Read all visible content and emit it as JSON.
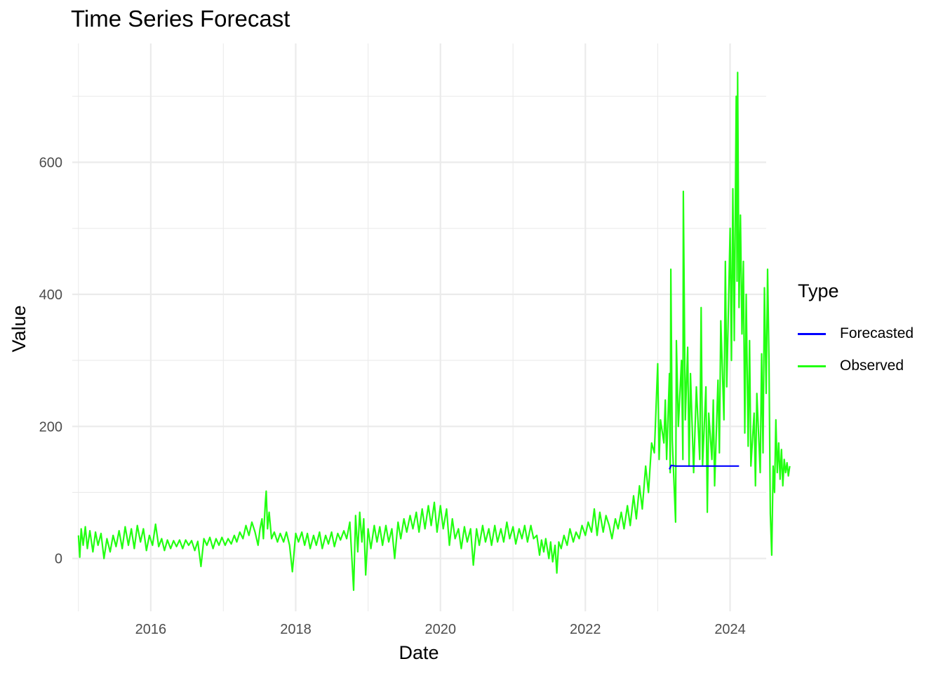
{
  "chart_data": {
    "type": "line",
    "title": "Time Series Forecast",
    "xlabel": "Date",
    "ylabel": "Value",
    "x_ticks": [
      "2016",
      "2018",
      "2020",
      "2022",
      "2024"
    ],
    "y_ticks": [
      "0",
      "200",
      "400",
      "600"
    ],
    "xlim": [
      "2014-12-01",
      "2024-07-01"
    ],
    "ylim": [
      -80,
      780
    ],
    "grid": true,
    "legend_title": "Type",
    "legend_position": "right",
    "series": [
      {
        "name": "Forecasted",
        "color": "#0000ff",
        "points": [
          [
            "2023-03-01",
            135
          ],
          [
            "2023-03-10",
            141
          ],
          [
            "2023-04-01",
            140
          ],
          [
            "2023-07-01",
            140
          ],
          [
            "2023-10-01",
            140
          ],
          [
            "2024-01-01",
            140
          ],
          [
            "2024-02-15",
            140
          ]
        ]
      },
      {
        "name": "Observed",
        "color": "#22ff11",
        "points": [
          [
            "2015-01-01",
            35
          ],
          [
            "2015-01-08",
            2
          ],
          [
            "2015-01-15",
            45
          ],
          [
            "2015-01-25",
            20
          ],
          [
            "2015-02-05",
            48
          ],
          [
            "2015-02-15",
            15
          ],
          [
            "2015-02-28",
            42
          ],
          [
            "2015-03-15",
            10
          ],
          [
            "2015-03-28",
            40
          ],
          [
            "2015-04-10",
            20
          ],
          [
            "2015-04-25",
            38
          ],
          [
            "2015-05-10",
            0
          ],
          [
            "2015-05-25",
            30
          ],
          [
            "2015-06-10",
            10
          ],
          [
            "2015-06-25",
            35
          ],
          [
            "2015-07-10",
            18
          ],
          [
            "2015-07-25",
            42
          ],
          [
            "2015-08-10",
            15
          ],
          [
            "2015-08-25",
            48
          ],
          [
            "2015-09-10",
            20
          ],
          [
            "2015-09-25",
            45
          ],
          [
            "2015-10-10",
            15
          ],
          [
            "2015-10-25",
            50
          ],
          [
            "2015-11-10",
            25
          ],
          [
            "2015-11-25",
            45
          ],
          [
            "2015-12-10",
            12
          ],
          [
            "2015-12-25",
            35
          ],
          [
            "2016-01-10",
            20
          ],
          [
            "2016-01-25",
            52
          ],
          [
            "2016-02-10",
            18
          ],
          [
            "2016-02-25",
            30
          ],
          [
            "2016-03-10",
            12
          ],
          [
            "2016-03-25",
            28
          ],
          [
            "2016-04-10",
            15
          ],
          [
            "2016-04-25",
            27
          ],
          [
            "2016-05-10",
            18
          ],
          [
            "2016-05-25",
            28
          ],
          [
            "2016-06-10",
            15
          ],
          [
            "2016-06-25",
            28
          ],
          [
            "2016-07-10",
            20
          ],
          [
            "2016-07-25",
            27
          ],
          [
            "2016-08-10",
            12
          ],
          [
            "2016-08-25",
            26
          ],
          [
            "2016-09-10",
            -12
          ],
          [
            "2016-09-25",
            30
          ],
          [
            "2016-10-10",
            20
          ],
          [
            "2016-10-25",
            32
          ],
          [
            "2016-11-10",
            15
          ],
          [
            "2016-11-25",
            30
          ],
          [
            "2016-12-10",
            20
          ],
          [
            "2016-12-25",
            32
          ],
          [
            "2017-01-10",
            20
          ],
          [
            "2017-01-25",
            30
          ],
          [
            "2017-02-10",
            22
          ],
          [
            "2017-02-25",
            35
          ],
          [
            "2017-03-10",
            25
          ],
          [
            "2017-03-25",
            40
          ],
          [
            "2017-04-10",
            30
          ],
          [
            "2017-04-25",
            50
          ],
          [
            "2017-05-10",
            35
          ],
          [
            "2017-05-25",
            55
          ],
          [
            "2017-06-10",
            40
          ],
          [
            "2017-06-25",
            20
          ],
          [
            "2017-07-05",
            45
          ],
          [
            "2017-07-15",
            60
          ],
          [
            "2017-07-22",
            30
          ],
          [
            "2017-08-01",
            85
          ],
          [
            "2017-08-05",
            102
          ],
          [
            "2017-08-12",
            45
          ],
          [
            "2017-08-20",
            70
          ],
          [
            "2017-09-01",
            30
          ],
          [
            "2017-09-15",
            40
          ],
          [
            "2017-10-01",
            25
          ],
          [
            "2017-10-15",
            38
          ],
          [
            "2017-11-01",
            25
          ],
          [
            "2017-11-15",
            40
          ],
          [
            "2017-12-01",
            20
          ],
          [
            "2017-12-15",
            -20
          ],
          [
            "2018-01-01",
            38
          ],
          [
            "2018-01-15",
            25
          ],
          [
            "2018-02-01",
            40
          ],
          [
            "2018-02-15",
            20
          ],
          [
            "2018-03-01",
            38
          ],
          [
            "2018-03-15",
            15
          ],
          [
            "2018-04-01",
            35
          ],
          [
            "2018-04-15",
            20
          ],
          [
            "2018-05-01",
            40
          ],
          [
            "2018-05-15",
            15
          ],
          [
            "2018-06-01",
            35
          ],
          [
            "2018-06-15",
            22
          ],
          [
            "2018-07-01",
            40
          ],
          [
            "2018-07-15",
            18
          ],
          [
            "2018-08-01",
            38
          ],
          [
            "2018-08-15",
            28
          ],
          [
            "2018-09-01",
            42
          ],
          [
            "2018-09-15",
            30
          ],
          [
            "2018-10-01",
            55
          ],
          [
            "2018-10-10",
            8
          ],
          [
            "2018-10-20",
            -48
          ],
          [
            "2018-10-30",
            65
          ],
          [
            "2018-11-10",
            10
          ],
          [
            "2018-11-20",
            70
          ],
          [
            "2018-12-01",
            25
          ],
          [
            "2018-12-10",
            60
          ],
          [
            "2018-12-20",
            -25
          ],
          [
            "2019-01-01",
            45
          ],
          [
            "2019-01-15",
            15
          ],
          [
            "2019-02-01",
            50
          ],
          [
            "2019-02-15",
            25
          ],
          [
            "2019-03-01",
            48
          ],
          [
            "2019-03-15",
            20
          ],
          [
            "2019-04-01",
            50
          ],
          [
            "2019-04-15",
            25
          ],
          [
            "2019-05-01",
            45
          ],
          [
            "2019-05-15",
            0
          ],
          [
            "2019-06-01",
            55
          ],
          [
            "2019-06-15",
            30
          ],
          [
            "2019-07-01",
            60
          ],
          [
            "2019-07-15",
            40
          ],
          [
            "2019-08-01",
            65
          ],
          [
            "2019-08-15",
            45
          ],
          [
            "2019-09-01",
            70
          ],
          [
            "2019-09-15",
            40
          ],
          [
            "2019-10-01",
            75
          ],
          [
            "2019-10-15",
            45
          ],
          [
            "2019-11-01",
            80
          ],
          [
            "2019-11-15",
            50
          ],
          [
            "2019-12-01",
            85
          ],
          [
            "2019-12-15",
            40
          ],
          [
            "2020-01-01",
            80
          ],
          [
            "2020-01-15",
            45
          ],
          [
            "2020-02-01",
            75
          ],
          [
            "2020-02-15",
            20
          ],
          [
            "2020-03-01",
            60
          ],
          [
            "2020-03-15",
            30
          ],
          [
            "2020-04-01",
            45
          ],
          [
            "2020-04-15",
            15
          ],
          [
            "2020-05-01",
            48
          ],
          [
            "2020-05-15",
            25
          ],
          [
            "2020-06-01",
            45
          ],
          [
            "2020-06-15",
            -10
          ],
          [
            "2020-07-01",
            45
          ],
          [
            "2020-07-15",
            20
          ],
          [
            "2020-08-01",
            50
          ],
          [
            "2020-08-15",
            25
          ],
          [
            "2020-09-01",
            45
          ],
          [
            "2020-09-15",
            20
          ],
          [
            "2020-10-01",
            50
          ],
          [
            "2020-10-15",
            25
          ],
          [
            "2020-11-01",
            45
          ],
          [
            "2020-11-15",
            25
          ],
          [
            "2020-12-01",
            55
          ],
          [
            "2020-12-15",
            30
          ],
          [
            "2021-01-01",
            48
          ],
          [
            "2021-01-15",
            22
          ],
          [
            "2021-02-01",
            45
          ],
          [
            "2021-02-15",
            30
          ],
          [
            "2021-03-01",
            50
          ],
          [
            "2021-03-15",
            25
          ],
          [
            "2021-04-01",
            50
          ],
          [
            "2021-04-15",
            30
          ],
          [
            "2021-05-01",
            35
          ],
          [
            "2021-05-15",
            5
          ],
          [
            "2021-05-25",
            28
          ],
          [
            "2021-06-05",
            10
          ],
          [
            "2021-06-15",
            30
          ],
          [
            "2021-07-01",
            0
          ],
          [
            "2021-07-10",
            25
          ],
          [
            "2021-07-20",
            -5
          ],
          [
            "2021-08-01",
            20
          ],
          [
            "2021-08-10",
            -22
          ],
          [
            "2021-08-20",
            25
          ],
          [
            "2021-09-01",
            15
          ],
          [
            "2021-09-15",
            35
          ],
          [
            "2021-10-01",
            20
          ],
          [
            "2021-10-15",
            45
          ],
          [
            "2021-11-01",
            25
          ],
          [
            "2021-11-15",
            40
          ],
          [
            "2021-12-01",
            30
          ],
          [
            "2021-12-15",
            50
          ],
          [
            "2022-01-01",
            35
          ],
          [
            "2022-01-15",
            55
          ],
          [
            "2022-02-01",
            40
          ],
          [
            "2022-02-15",
            75
          ],
          [
            "2022-03-01",
            35
          ],
          [
            "2022-03-15",
            70
          ],
          [
            "2022-04-01",
            40
          ],
          [
            "2022-04-15",
            65
          ],
          [
            "2022-05-01",
            50
          ],
          [
            "2022-05-15",
            30
          ],
          [
            "2022-06-01",
            60
          ],
          [
            "2022-06-15",
            45
          ],
          [
            "2022-07-01",
            70
          ],
          [
            "2022-07-15",
            45
          ],
          [
            "2022-08-01",
            80
          ],
          [
            "2022-08-15",
            50
          ],
          [
            "2022-09-01",
            95
          ],
          [
            "2022-09-15",
            60
          ],
          [
            "2022-10-01",
            110
          ],
          [
            "2022-10-15",
            75
          ],
          [
            "2022-11-01",
            140
          ],
          [
            "2022-11-15",
            100
          ],
          [
            "2022-12-01",
            175
          ],
          [
            "2022-12-15",
            160
          ],
          [
            "2023-01-01",
            295
          ],
          [
            "2023-01-08",
            150
          ],
          [
            "2023-01-15",
            210
          ],
          [
            "2023-02-01",
            175
          ],
          [
            "2023-02-08",
            240
          ],
          [
            "2023-02-15",
            150
          ],
          [
            "2023-03-01",
            280
          ],
          [
            "2023-03-05",
            130
          ],
          [
            "2023-03-08",
            438
          ],
          [
            "2023-03-15",
            180
          ],
          [
            "2023-04-01",
            55
          ],
          [
            "2023-04-05",
            330
          ],
          [
            "2023-04-15",
            200
          ],
          [
            "2023-05-01",
            300
          ],
          [
            "2023-05-08",
            150
          ],
          [
            "2023-05-10",
            556
          ],
          [
            "2023-05-20",
            210
          ],
          [
            "2023-06-01",
            320
          ],
          [
            "2023-06-08",
            140
          ],
          [
            "2023-06-15",
            280
          ],
          [
            "2023-07-01",
            130
          ],
          [
            "2023-07-15",
            260
          ],
          [
            "2023-08-01",
            150
          ],
          [
            "2023-08-08",
            380
          ],
          [
            "2023-08-15",
            140
          ],
          [
            "2023-09-01",
            260
          ],
          [
            "2023-09-08",
            70
          ],
          [
            "2023-09-15",
            220
          ],
          [
            "2023-10-01",
            150
          ],
          [
            "2023-10-08",
            240
          ],
          [
            "2023-10-15",
            110
          ],
          [
            "2023-11-01",
            270
          ],
          [
            "2023-11-08",
            160
          ],
          [
            "2023-11-15",
            360
          ],
          [
            "2023-12-01",
            210
          ],
          [
            "2023-12-08",
            450
          ],
          [
            "2023-12-15",
            260
          ],
          [
            "2024-01-01",
            500
          ],
          [
            "2024-01-08",
            300
          ],
          [
            "2024-01-15",
            560
          ],
          [
            "2024-01-22",
            330
          ],
          [
            "2024-02-01",
            700
          ],
          [
            "2024-02-05",
            420
          ],
          [
            "2024-02-08",
            736
          ],
          [
            "2024-02-15",
            380
          ],
          [
            "2024-02-22",
            520
          ],
          [
            "2024-03-01",
            340
          ],
          [
            "2024-03-08",
            450
          ],
          [
            "2024-03-15",
            190
          ],
          [
            "2024-03-22",
            400
          ],
          [
            "2024-04-01",
            170
          ],
          [
            "2024-04-08",
            330
          ],
          [
            "2024-04-15",
            140
          ],
          [
            "2024-05-01",
            220
          ],
          [
            "2024-05-08",
            110
          ],
          [
            "2024-05-15",
            250
          ],
          [
            "2024-06-01",
            130
          ],
          [
            "2024-06-08",
            310
          ],
          [
            "2024-06-15",
            160
          ],
          [
            "2024-06-22",
            410
          ],
          [
            "2024-07-01",
            250
          ],
          [
            "2024-07-08",
            438
          ],
          [
            "2024-07-15",
            300
          ],
          [
            "2024-07-22",
            68
          ],
          [
            "2024-07-29",
            5
          ],
          [
            "2024-08-05",
            140
          ],
          [
            "2024-08-12",
            100
          ],
          [
            "2024-08-19",
            210
          ],
          [
            "2024-08-26",
            130
          ],
          [
            "2024-09-02",
            175
          ],
          [
            "2024-09-09",
            120
          ],
          [
            "2024-09-16",
            165
          ],
          [
            "2024-09-23",
            110
          ],
          [
            "2024-09-30",
            150
          ],
          [
            "2024-10-07",
            130
          ],
          [
            "2024-10-14",
            145
          ],
          [
            "2024-10-21",
            125
          ],
          [
            "2024-10-28",
            140
          ]
        ]
      }
    ]
  }
}
